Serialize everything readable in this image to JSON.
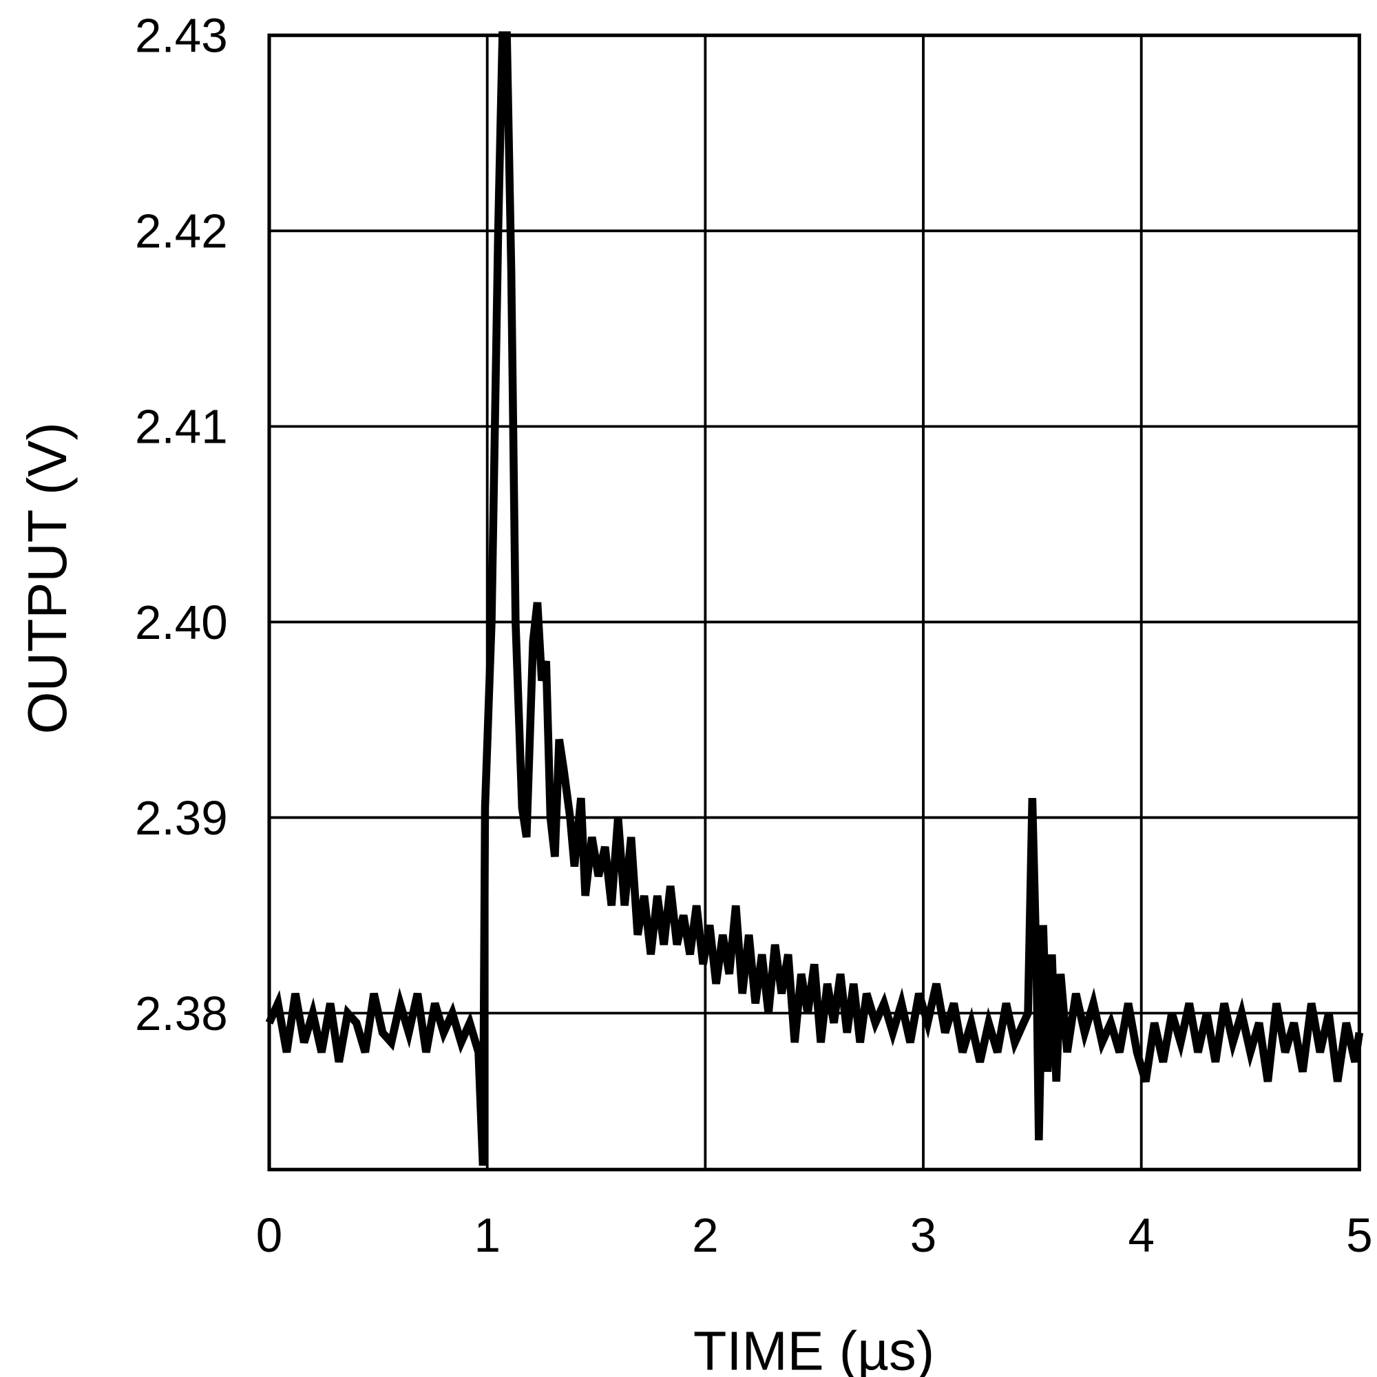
{
  "chart_data": {
    "type": "line",
    "title": "",
    "xlabel": "TIME (µs)",
    "ylabel": "OUTPUT (V)",
    "xlim": [
      0,
      5
    ],
    "ylim": [
      2.372,
      2.43
    ],
    "grid": true,
    "xticks": [
      "0",
      "1",
      "2",
      "3",
      "4",
      "5"
    ],
    "yticks": [
      "2.38",
      "2.39",
      "2.40",
      "2.41",
      "2.42",
      "2.43"
    ],
    "line_color": "#000000",
    "series": [
      {
        "x": [
          0.0,
          0.04,
          0.08,
          0.12,
          0.16,
          0.2,
          0.24,
          0.28,
          0.32,
          0.36,
          0.4,
          0.44,
          0.48,
          0.52,
          0.56,
          0.6,
          0.64,
          0.68,
          0.72,
          0.76,
          0.8,
          0.84,
          0.88,
          0.92,
          0.96,
          0.98,
          0.99,
          1.02,
          1.05,
          1.07,
          1.09,
          1.11,
          1.13,
          1.16,
          1.18,
          1.21,
          1.23,
          1.25,
          1.27,
          1.29,
          1.31,
          1.33,
          1.35,
          1.38,
          1.4,
          1.43,
          1.45,
          1.48,
          1.51,
          1.54,
          1.57,
          1.6,
          1.63,
          1.66,
          1.69,
          1.72,
          1.75,
          1.78,
          1.81,
          1.84,
          1.87,
          1.9,
          1.93,
          1.96,
          1.99,
          2.02,
          2.05,
          2.08,
          2.11,
          2.14,
          2.17,
          2.2,
          2.23,
          2.26,
          2.29,
          2.32,
          2.35,
          2.38,
          2.41,
          2.44,
          2.47,
          2.5,
          2.53,
          2.56,
          2.59,
          2.62,
          2.65,
          2.68,
          2.71,
          2.74,
          2.78,
          2.82,
          2.86,
          2.9,
          2.94,
          2.98,
          3.02,
          3.06,
          3.1,
          3.14,
          3.18,
          3.22,
          3.26,
          3.3,
          3.34,
          3.38,
          3.42,
          3.46,
          3.48,
          3.5,
          3.52,
          3.53,
          3.55,
          3.57,
          3.59,
          3.61,
          3.63,
          3.66,
          3.7,
          3.74,
          3.78,
          3.82,
          3.86,
          3.9,
          3.94,
          3.98,
          4.02,
          4.06,
          4.1,
          4.14,
          4.18,
          4.22,
          4.26,
          4.3,
          4.34,
          4.38,
          4.42,
          4.46,
          4.5,
          4.54,
          4.58,
          4.62,
          4.66,
          4.7,
          4.74,
          4.78,
          4.82,
          4.86,
          4.9,
          4.94,
          4.98,
          5.0
        ],
        "y": [
          2.3795,
          2.3805,
          2.378,
          2.381,
          2.3785,
          2.38,
          2.378,
          2.3805,
          2.3775,
          2.38,
          2.3795,
          2.378,
          2.381,
          2.379,
          2.3785,
          2.3805,
          2.379,
          2.381,
          2.378,
          2.3805,
          2.379,
          2.38,
          2.3785,
          2.3795,
          2.378,
          2.3722,
          2.3905,
          2.4,
          2.42,
          2.43,
          2.43,
          2.418,
          2.4,
          2.3905,
          2.389,
          2.399,
          2.401,
          2.397,
          2.398,
          2.39,
          2.388,
          2.394,
          2.3925,
          2.39,
          2.3875,
          2.391,
          2.386,
          2.389,
          2.387,
          2.3885,
          2.3855,
          2.39,
          2.3855,
          2.389,
          2.384,
          2.386,
          2.383,
          2.386,
          2.3835,
          2.3865,
          2.3835,
          2.385,
          2.383,
          2.3855,
          2.3825,
          2.3845,
          2.3815,
          2.384,
          2.382,
          2.3855,
          2.381,
          2.384,
          2.3805,
          2.383,
          2.38,
          2.3835,
          2.381,
          2.383,
          2.3785,
          2.382,
          2.38,
          2.3825,
          2.3785,
          2.3815,
          2.3795,
          2.382,
          2.379,
          2.3815,
          2.3785,
          2.381,
          2.3795,
          2.3805,
          2.379,
          2.3805,
          2.3785,
          2.381,
          2.3795,
          2.3815,
          2.379,
          2.3805,
          2.378,
          2.3795,
          2.3775,
          2.3795,
          2.378,
          2.3805,
          2.3785,
          2.3795,
          2.38,
          2.391,
          2.382,
          2.3735,
          2.3845,
          2.377,
          2.383,
          2.3765,
          2.382,
          2.378,
          2.381,
          2.379,
          2.3805,
          2.3785,
          2.3795,
          2.378,
          2.3805,
          2.378,
          2.3765,
          2.3795,
          2.3775,
          2.38,
          2.3785,
          2.3805,
          2.378,
          2.38,
          2.3775,
          2.3805,
          2.3785,
          2.38,
          2.378,
          2.3795,
          2.3765,
          2.3805,
          2.378,
          2.3795,
          2.377,
          2.3805,
          2.378,
          2.38,
          2.3765,
          2.3795,
          2.3775,
          2.379
        ]
      }
    ]
  }
}
